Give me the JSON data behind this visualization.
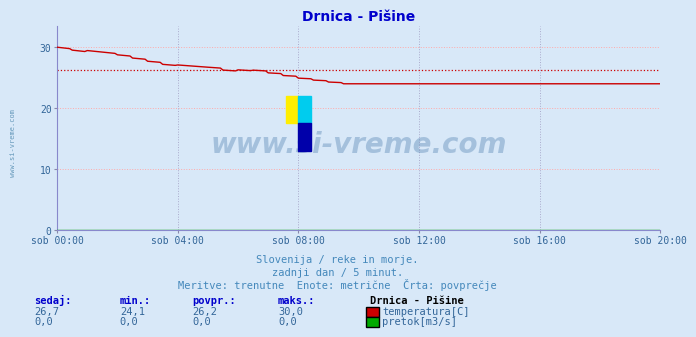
{
  "title": "Drnica - Pišine",
  "background_color": "#d8e8f8",
  "plot_bg_color": "#d8e8f8",
  "grid_color_h": "#ffaaaa",
  "grid_color_v": "#aaaacc",
  "x_labels": [
    "sob 00:00",
    "sob 04:00",
    "sob 08:00",
    "sob 12:00",
    "sob 16:00",
    "sob 20:00"
  ],
  "x_ticks": [
    0,
    48,
    96,
    144,
    192,
    240
  ],
  "x_total": 240,
  "ylim": [
    0,
    33.5
  ],
  "yticks": [
    0,
    10,
    20,
    30
  ],
  "temp_color": "#cc0000",
  "pretok_color": "#00aa00",
  "avg_line_color": "#cc0000",
  "avg_value": 26.2,
  "subtitle1": "Slovenija / reke in morje.",
  "subtitle2": "zadnji dan / 5 minut.",
  "subtitle3": "Meritve: trenutne  Enote: metrične  Črta: povprečje",
  "legend_title": "Drnica - Pišine",
  "label_temp": "temperatura[C]",
  "label_pretok": "pretok[m3/s]",
  "watermark": "www.si-vreme.com",
  "left_label": "www.si-vreme.com",
  "col_sedaj": "sedaj:",
  "col_min": "min.:",
  "col_povpr": "povpr.:",
  "col_maks": "maks.:",
  "v_sedaj_t": "26,7",
  "v_min_t": "24,1",
  "v_povpr_t": "26,2",
  "v_maks_t": "30,0",
  "v_sedaj_p": "0,0",
  "v_min_p": "0,0",
  "v_povpr_p": "0,0",
  "v_maks_p": "0,0"
}
